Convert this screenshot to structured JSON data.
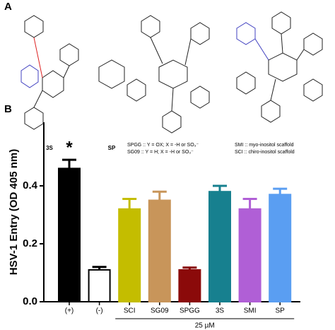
{
  "panel_a": {
    "label": "A",
    "compounds": [
      "3S",
      "SP"
    ],
    "legend": [
      "SPGG :: Y = OX; X = -H or SO₃⁻",
      "SG09 :: Y = H; X = -H or SO₃⁻",
      "SMI :: myo-inositol scaffold",
      "SCI :: chiro-inositol scaffold"
    ]
  },
  "chart_data": {
    "type": "bar",
    "panel_label": "B",
    "ylabel": "HSV-1 Entry (OD 405 nm)",
    "categories": [
      "(+)",
      "(-)",
      "SCI",
      "SG09",
      "SPGG",
      "3S",
      "SMI",
      "SP"
    ],
    "values": [
      0.46,
      0.11,
      0.32,
      0.35,
      0.11,
      0.38,
      0.32,
      0.37
    ],
    "errors": [
      0.03,
      0.01,
      0.035,
      0.03,
      0.008,
      0.02,
      0.035,
      0.02
    ],
    "colors": [
      "#000000",
      "#ffffff",
      "#c4bd00",
      "#c8955a",
      "#8b0a0a",
      "#17808f",
      "#b05fd6",
      "#5a9ef2"
    ],
    "annotation": "*",
    "group_label": "25 µM",
    "ylim": [
      0,
      0.6
    ],
    "yticks": [
      {
        "value": 0,
        "label": "0.0"
      },
      {
        "value": 0.2,
        "label": "0.2"
      },
      {
        "value": 0.4,
        "label": "0.4"
      }
    ]
  }
}
